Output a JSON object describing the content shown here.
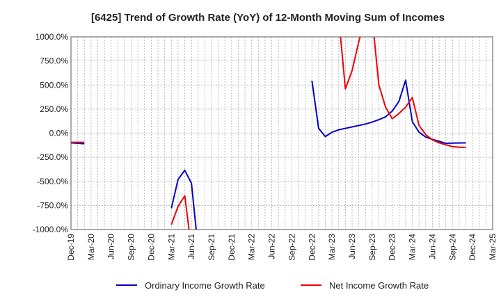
{
  "chart_data": {
    "type": "line",
    "title": "[6425]  Trend of Growth Rate (YoY) of 12-Month Moving Sum of Incomes",
    "xlabel": "",
    "ylabel": "",
    "ylim": [
      -1000,
      1000
    ],
    "y_ticks": [
      1000,
      750,
      500,
      250,
      0,
      -250,
      -500,
      -750,
      -1000
    ],
    "y_tick_labels": [
      "1000.0%",
      "750.0%",
      "500.0%",
      "250.0%",
      "0.0%",
      "-250.0%",
      "-500.0%",
      "-750.0%",
      "-1000.0%"
    ],
    "x_tick_labels": [
      "Dec-19",
      "Mar-20",
      "Jun-20",
      "Sep-20",
      "Dec-20",
      "Mar-21",
      "Jun-21",
      "Sep-21",
      "Dec-21",
      "Mar-22",
      "Jun-22",
      "Sep-22",
      "Dec-22",
      "Mar-23",
      "Jun-23",
      "Sep-23",
      "Dec-23",
      "Mar-24",
      "Jun-24",
      "Sep-24",
      "Dec-24",
      "Mar-25"
    ],
    "grid": true,
    "legend_position": "bottom",
    "series": [
      {
        "name": "Ordinary Income Growth Rate",
        "color": "#0000cc",
        "points": [
          [
            0,
            -100
          ],
          [
            1,
            -105
          ],
          [
            2,
            -110
          ],
          [
            15,
            -780
          ],
          [
            16,
            -480
          ],
          [
            17,
            -385
          ],
          [
            18,
            -520
          ],
          [
            19,
            -1200
          ],
          [
            36,
            545
          ],
          [
            37,
            50
          ],
          [
            38,
            -35
          ],
          [
            39,
            10
          ],
          [
            40,
            35
          ],
          [
            41,
            50
          ],
          [
            42,
            65
          ],
          [
            43,
            80
          ],
          [
            44,
            95
          ],
          [
            45,
            115
          ],
          [
            46,
            140
          ],
          [
            47,
            170
          ],
          [
            48,
            230
          ],
          [
            49,
            330
          ],
          [
            50,
            550
          ],
          [
            51,
            120
          ],
          [
            52,
            10
          ],
          [
            53,
            -40
          ],
          [
            54,
            -65
          ],
          [
            55,
            -85
          ],
          [
            56,
            -105
          ],
          [
            57,
            -103
          ],
          [
            58,
            -102
          ],
          [
            59,
            -100
          ]
        ]
      },
      {
        "name": "Net Income Growth Rate",
        "color": "#ee0000",
        "points": [
          [
            0,
            -95
          ],
          [
            1,
            -95
          ],
          [
            2,
            -95
          ],
          [
            15,
            -950
          ],
          [
            16,
            -760
          ],
          [
            17,
            -650
          ],
          [
            18,
            -1200
          ],
          [
            40,
            1200
          ],
          [
            41,
            460
          ],
          [
            42,
            650
          ],
          [
            43,
            950
          ],
          [
            44,
            1200
          ],
          [
            45,
            1200
          ],
          [
            46,
            500
          ],
          [
            47,
            270
          ],
          [
            48,
            150
          ],
          [
            49,
            205
          ],
          [
            50,
            270
          ],
          [
            51,
            370
          ],
          [
            52,
            80
          ],
          [
            53,
            -15
          ],
          [
            54,
            -70
          ],
          [
            55,
            -100
          ],
          [
            56,
            -120
          ],
          [
            57,
            -140
          ],
          [
            58,
            -145
          ],
          [
            59,
            -148
          ]
        ]
      }
    ]
  }
}
